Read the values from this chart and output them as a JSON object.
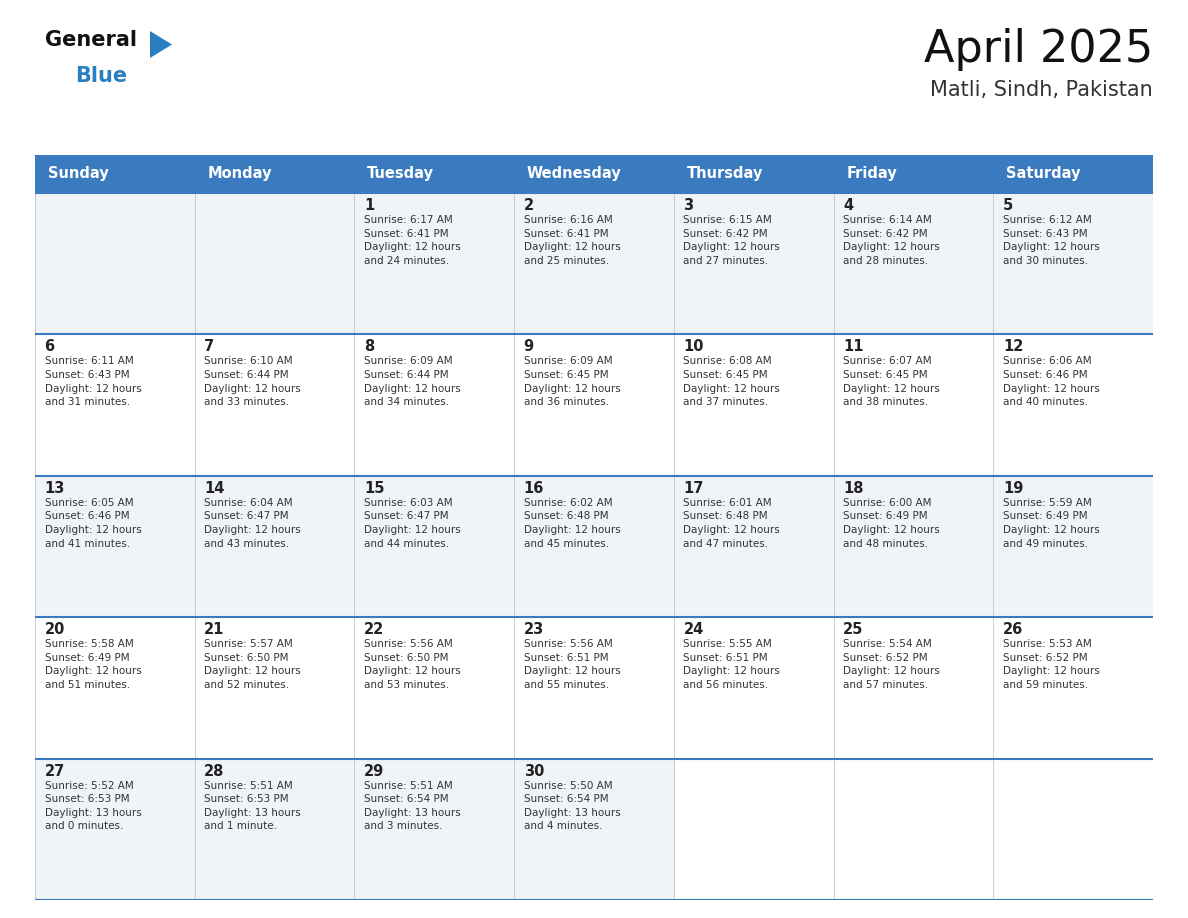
{
  "title": "April 2025",
  "subtitle": "Matli, Sindh, Pakistan",
  "header_bg": "#3a7abf",
  "header_text": "#ffffff",
  "row_bg_odd": "#f0f4f8",
  "row_bg_even": "#ffffff",
  "border_color": "#3a7abf",
  "cell_border": "#bbbbbb",
  "day_headers": [
    "Sunday",
    "Monday",
    "Tuesday",
    "Wednesday",
    "Thursday",
    "Friday",
    "Saturday"
  ],
  "days": [
    {
      "col": 0,
      "row": 0,
      "num": "",
      "sunrise": "",
      "sunset": "",
      "daylight": ""
    },
    {
      "col": 1,
      "row": 0,
      "num": "",
      "sunrise": "",
      "sunset": "",
      "daylight": ""
    },
    {
      "col": 2,
      "row": 0,
      "num": "1",
      "sunrise": "6:17 AM",
      "sunset": "6:41 PM",
      "daylight": "12 hours\nand 24 minutes."
    },
    {
      "col": 3,
      "row": 0,
      "num": "2",
      "sunrise": "6:16 AM",
      "sunset": "6:41 PM",
      "daylight": "12 hours\nand 25 minutes."
    },
    {
      "col": 4,
      "row": 0,
      "num": "3",
      "sunrise": "6:15 AM",
      "sunset": "6:42 PM",
      "daylight": "12 hours\nand 27 minutes."
    },
    {
      "col": 5,
      "row": 0,
      "num": "4",
      "sunrise": "6:14 AM",
      "sunset": "6:42 PM",
      "daylight": "12 hours\nand 28 minutes."
    },
    {
      "col": 6,
      "row": 0,
      "num": "5",
      "sunrise": "6:12 AM",
      "sunset": "6:43 PM",
      "daylight": "12 hours\nand 30 minutes."
    },
    {
      "col": 0,
      "row": 1,
      "num": "6",
      "sunrise": "6:11 AM",
      "sunset": "6:43 PM",
      "daylight": "12 hours\nand 31 minutes."
    },
    {
      "col": 1,
      "row": 1,
      "num": "7",
      "sunrise": "6:10 AM",
      "sunset": "6:44 PM",
      "daylight": "12 hours\nand 33 minutes."
    },
    {
      "col": 2,
      "row": 1,
      "num": "8",
      "sunrise": "6:09 AM",
      "sunset": "6:44 PM",
      "daylight": "12 hours\nand 34 minutes."
    },
    {
      "col": 3,
      "row": 1,
      "num": "9",
      "sunrise": "6:09 AM",
      "sunset": "6:45 PM",
      "daylight": "12 hours\nand 36 minutes."
    },
    {
      "col": 4,
      "row": 1,
      "num": "10",
      "sunrise": "6:08 AM",
      "sunset": "6:45 PM",
      "daylight": "12 hours\nand 37 minutes."
    },
    {
      "col": 5,
      "row": 1,
      "num": "11",
      "sunrise": "6:07 AM",
      "sunset": "6:45 PM",
      "daylight": "12 hours\nand 38 minutes."
    },
    {
      "col": 6,
      "row": 1,
      "num": "12",
      "sunrise": "6:06 AM",
      "sunset": "6:46 PM",
      "daylight": "12 hours\nand 40 minutes."
    },
    {
      "col": 0,
      "row": 2,
      "num": "13",
      "sunrise": "6:05 AM",
      "sunset": "6:46 PM",
      "daylight": "12 hours\nand 41 minutes."
    },
    {
      "col": 1,
      "row": 2,
      "num": "14",
      "sunrise": "6:04 AM",
      "sunset": "6:47 PM",
      "daylight": "12 hours\nand 43 minutes."
    },
    {
      "col": 2,
      "row": 2,
      "num": "15",
      "sunrise": "6:03 AM",
      "sunset": "6:47 PM",
      "daylight": "12 hours\nand 44 minutes."
    },
    {
      "col": 3,
      "row": 2,
      "num": "16",
      "sunrise": "6:02 AM",
      "sunset": "6:48 PM",
      "daylight": "12 hours\nand 45 minutes."
    },
    {
      "col": 4,
      "row": 2,
      "num": "17",
      "sunrise": "6:01 AM",
      "sunset": "6:48 PM",
      "daylight": "12 hours\nand 47 minutes."
    },
    {
      "col": 5,
      "row": 2,
      "num": "18",
      "sunrise": "6:00 AM",
      "sunset": "6:49 PM",
      "daylight": "12 hours\nand 48 minutes."
    },
    {
      "col": 6,
      "row": 2,
      "num": "19",
      "sunrise": "5:59 AM",
      "sunset": "6:49 PM",
      "daylight": "12 hours\nand 49 minutes."
    },
    {
      "col": 0,
      "row": 3,
      "num": "20",
      "sunrise": "5:58 AM",
      "sunset": "6:49 PM",
      "daylight": "12 hours\nand 51 minutes."
    },
    {
      "col": 1,
      "row": 3,
      "num": "21",
      "sunrise": "5:57 AM",
      "sunset": "6:50 PM",
      "daylight": "12 hours\nand 52 minutes."
    },
    {
      "col": 2,
      "row": 3,
      "num": "22",
      "sunrise": "5:56 AM",
      "sunset": "6:50 PM",
      "daylight": "12 hours\nand 53 minutes."
    },
    {
      "col": 3,
      "row": 3,
      "num": "23",
      "sunrise": "5:56 AM",
      "sunset": "6:51 PM",
      "daylight": "12 hours\nand 55 minutes."
    },
    {
      "col": 4,
      "row": 3,
      "num": "24",
      "sunrise": "5:55 AM",
      "sunset": "6:51 PM",
      "daylight": "12 hours\nand 56 minutes."
    },
    {
      "col": 5,
      "row": 3,
      "num": "25",
      "sunrise": "5:54 AM",
      "sunset": "6:52 PM",
      "daylight": "12 hours\nand 57 minutes."
    },
    {
      "col": 6,
      "row": 3,
      "num": "26",
      "sunrise": "5:53 AM",
      "sunset": "6:52 PM",
      "daylight": "12 hours\nand 59 minutes."
    },
    {
      "col": 0,
      "row": 4,
      "num": "27",
      "sunrise": "5:52 AM",
      "sunset": "6:53 PM",
      "daylight": "13 hours\nand 0 minutes."
    },
    {
      "col": 1,
      "row": 4,
      "num": "28",
      "sunrise": "5:51 AM",
      "sunset": "6:53 PM",
      "daylight": "13 hours\nand 1 minute."
    },
    {
      "col": 2,
      "row": 4,
      "num": "29",
      "sunrise": "5:51 AM",
      "sunset": "6:54 PM",
      "daylight": "13 hours\nand 3 minutes."
    },
    {
      "col": 3,
      "row": 4,
      "num": "30",
      "sunrise": "5:50 AM",
      "sunset": "6:54 PM",
      "daylight": "13 hours\nand 4 minutes."
    }
  ],
  "logo_general_color": "#111111",
  "logo_blue_color": "#2a7fc0",
  "logo_triangle_color": "#2a7fc0",
  "title_color": "#111111",
  "subtitle_color": "#333333",
  "text_color": "#333333",
  "day_num_color": "#222222"
}
